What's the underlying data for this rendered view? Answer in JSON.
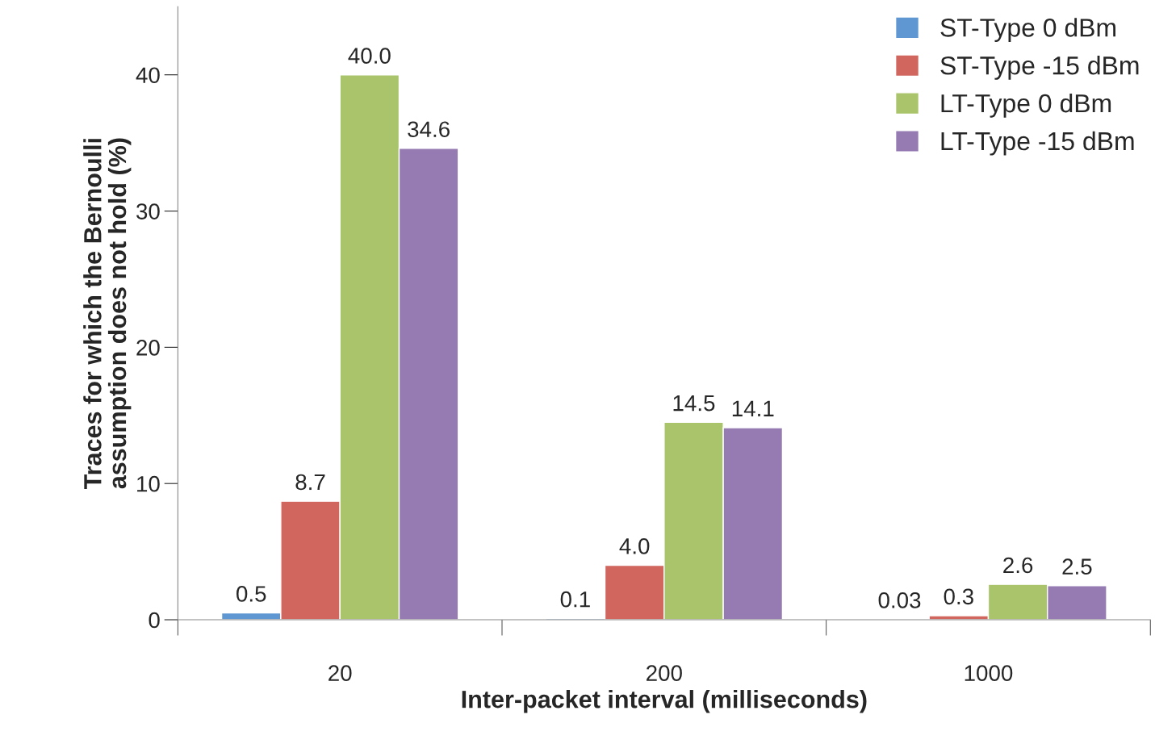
{
  "chart_data": {
    "type": "bar",
    "xlabel": "Inter-packet interval (milliseconds)",
    "ylabel": "Traces for which the Bernoulli\nassumption does not hold (%)",
    "categories": [
      "20",
      "200",
      "1000"
    ],
    "series": [
      {
        "name": "ST-Type 0 dBm",
        "color": "#5e97d2",
        "values": [
          0.5,
          0.1,
          0.03
        ],
        "value_labels": [
          "0.5",
          "0.1",
          "0.03"
        ]
      },
      {
        "name": "ST-Type -15 dBm",
        "color": "#d0665e",
        "values": [
          8.7,
          4.0,
          0.3
        ],
        "value_labels": [
          "8.7",
          "4.0",
          "0.3"
        ]
      },
      {
        "name": "LT-Type 0 dBm",
        "color": "#a9c46b",
        "values": [
          40.0,
          14.5,
          2.6
        ],
        "value_labels": [
          "40.0",
          "14.5",
          "2.6"
        ]
      },
      {
        "name": "LT-Type -15 dBm",
        "color": "#957bb2",
        "values": [
          34.6,
          14.1,
          2.5
        ],
        "value_labels": [
          "34.6",
          "14.1",
          "2.5"
        ]
      }
    ],
    "ylim": [
      0,
      45
    ],
    "yticks": [
      0,
      10,
      20,
      30,
      40
    ],
    "legend": "top right",
    "grid": false
  }
}
